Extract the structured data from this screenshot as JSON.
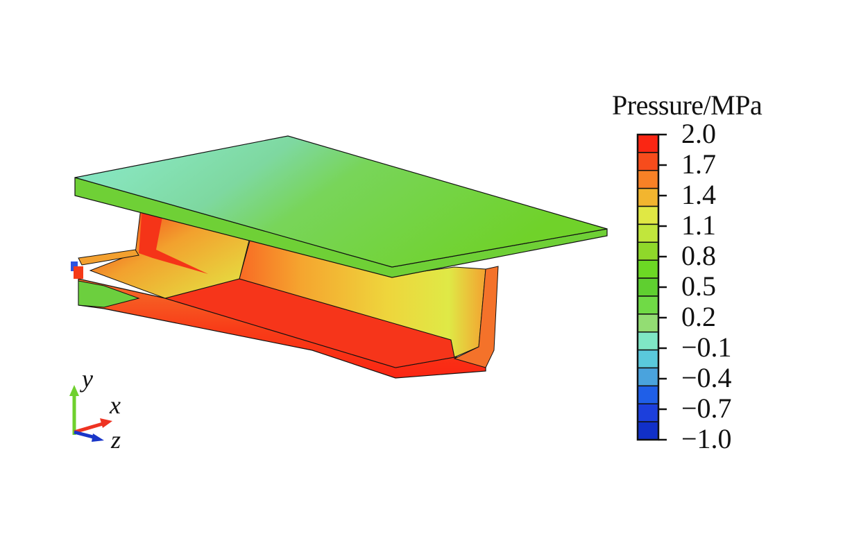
{
  "legend": {
    "title": "Pressure/MPa",
    "ticks": [
      "2.0",
      "1.7",
      "1.4",
      "1.1",
      "0.8",
      "0.5",
      "0.2",
      "−0.1",
      "−0.4",
      "−0.7",
      "−1.0"
    ],
    "colors": [
      "#fa2613",
      "#f74c1c",
      "#f88126",
      "#f2b52f",
      "#e0e844",
      "#c1e63c",
      "#8fd82a",
      "#6cd824",
      "#5fcf30",
      "#70da46",
      "#93dd73",
      "#7fe7c5",
      "#5ac9dc",
      "#4aa3dd",
      "#1f5fe8",
      "#1c3fdc",
      "#1130c8"
    ]
  },
  "axes": {
    "y": "y",
    "x": "x",
    "z": "z"
  },
  "field_colors": {
    "top_slab": "#74d42e",
    "top_slab_left": "#7fe3b8",
    "hot": "#f62d14",
    "orange": "#f58424",
    "yellow": "#e4ea46",
    "edge": "#111111"
  }
}
